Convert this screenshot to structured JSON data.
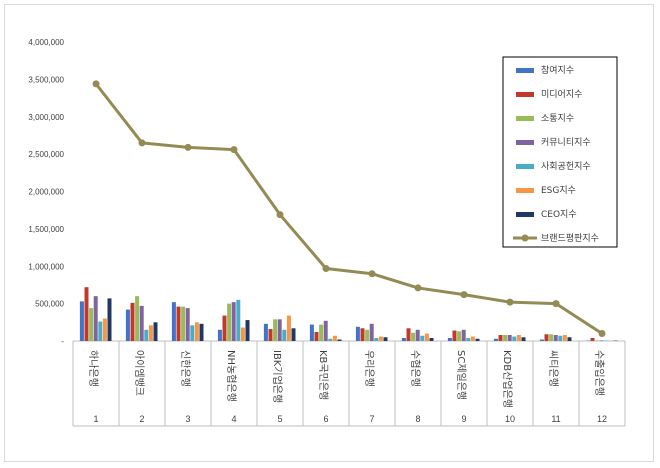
{
  "chart_data": {
    "type": "bar",
    "combo_line_series": "브랜드평판지수",
    "ylim": [
      0,
      4000000
    ],
    "y_ticks": [
      "4,000,000",
      "3,500,000",
      "3,000,000",
      "2,500,000",
      "2,000,000",
      "1,500,000",
      "1,000,000",
      "500,000",
      "-"
    ],
    "categories": [
      "하나은행",
      "아이엠뱅크",
      "신한은행",
      "NH농협은행",
      "IBK기업은행",
      "KB국민은행",
      "우리은행",
      "수협은행",
      "SC제일은행",
      "KDB산업은행",
      "씨티은행",
      "수출입은행"
    ],
    "ranks": [
      "1",
      "2",
      "3",
      "4",
      "5",
      "6",
      "7",
      "8",
      "9",
      "10",
      "11",
      "12"
    ],
    "legend_position": "top-right",
    "series": [
      {
        "name": "참여지수",
        "color": "#4472c4",
        "values": [
          530000,
          420000,
          520000,
          150000,
          230000,
          220000,
          190000,
          40000,
          40000,
          30000,
          20000,
          5000
        ]
      },
      {
        "name": "미디어지수",
        "color": "#c0392b",
        "values": [
          720000,
          510000,
          460000,
          340000,
          160000,
          120000,
          170000,
          170000,
          140000,
          80000,
          90000,
          40000
        ]
      },
      {
        "name": "소통지수",
        "color": "#9bbb59",
        "values": [
          440000,
          600000,
          460000,
          500000,
          290000,
          220000,
          150000,
          110000,
          130000,
          80000,
          90000,
          8000
        ]
      },
      {
        "name": "커뮤니티지수",
        "color": "#8064a2",
        "values": [
          600000,
          470000,
          440000,
          520000,
          290000,
          270000,
          230000,
          150000,
          150000,
          80000,
          80000,
          8000
        ]
      },
      {
        "name": "사회공헌지수",
        "color": "#4bacc6",
        "values": [
          260000,
          150000,
          210000,
          550000,
          150000,
          30000,
          40000,
          70000,
          40000,
          60000,
          70000,
          5000
        ]
      },
      {
        "name": "ESG지수",
        "color": "#f79646",
        "values": [
          300000,
          210000,
          250000,
          180000,
          340000,
          70000,
          60000,
          100000,
          60000,
          80000,
          80000,
          5000
        ]
      },
      {
        "name": "CEO지수",
        "color": "#1f3864",
        "values": [
          570000,
          250000,
          230000,
          280000,
          170000,
          20000,
          50000,
          40000,
          30000,
          50000,
          50000,
          5000
        ]
      }
    ],
    "line": {
      "name": "브랜드평판지수",
      "color": "#948a54",
      "values": [
        3440000,
        2650000,
        2590000,
        2560000,
        1690000,
        970000,
        900000,
        710000,
        620000,
        520000,
        500000,
        100000
      ]
    },
    "grid": false
  }
}
